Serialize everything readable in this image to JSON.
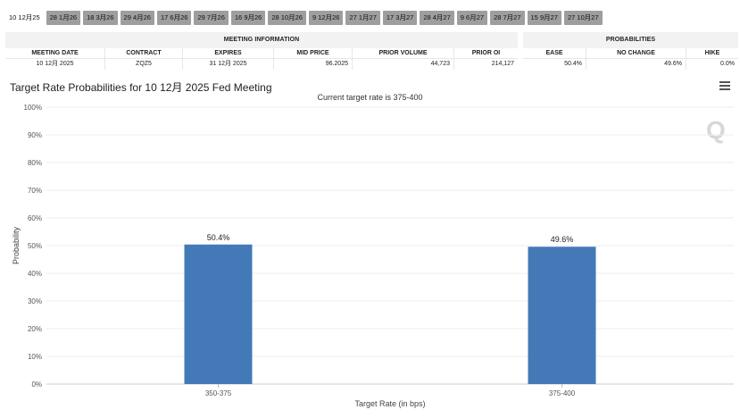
{
  "tabs": [
    "10 12月25",
    "28 1月26",
    "18 3月26",
    "29 4月26",
    "17 6月26",
    "29 7月26",
    "16 9月26",
    "28 10月26",
    "9 12月26",
    "27 1月27",
    "17 3月27",
    "28 4月27",
    "9 6月27",
    "28 7月27",
    "15 9月27",
    "27 10月27"
  ],
  "meeting_info": {
    "title": "MEETING INFORMATION",
    "headers": [
      "MEETING DATE",
      "CONTRACT",
      "EXPIRES",
      "MID PRICE",
      "PRIOR VOLUME",
      "PRIOR OI"
    ],
    "values": [
      "10 12月 2025",
      "ZQZ5",
      "31 12月 2025",
      "96.2025",
      "44,723",
      "214,127"
    ]
  },
  "probabilities": {
    "title": "PROBABILITIES",
    "headers": [
      "EASE",
      "NO CHANGE",
      "HIKE"
    ],
    "values": [
      "50.4%",
      "49.6%",
      "0.0%"
    ]
  },
  "chart_title": "Target Rate Probabilities for 10 12月 2025 Fed Meeting",
  "watermark": "Q",
  "chart_data": {
    "type": "bar",
    "title": "Current target rate is 375-400",
    "categories": [
      "350-375",
      "375-400"
    ],
    "values": [
      50.4,
      49.6
    ],
    "value_labels": [
      "50.4%",
      "49.6%"
    ],
    "xlabel": "Target Rate (in bps)",
    "ylabel": "Probability",
    "ylim": [
      0,
      100
    ],
    "yticks": [
      "0%",
      "10%",
      "20%",
      "30%",
      "40%",
      "50%",
      "60%",
      "70%",
      "80%",
      "90%",
      "100%"
    ],
    "bar_color": "#4479b7"
  }
}
